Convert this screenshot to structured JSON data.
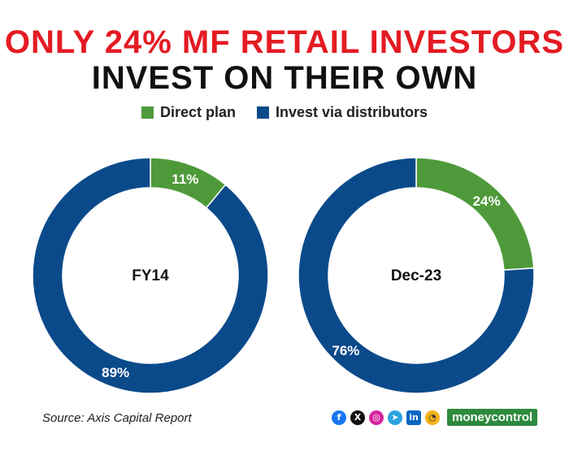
{
  "title": {
    "line1": "ONLY 24% MF RETAIL INVESTORS",
    "line2": "INVEST ON THEIR OWN"
  },
  "legend": {
    "direct": "Direct plan",
    "distributor": "Invest via distributors"
  },
  "colors": {
    "direct": "#4e9a3a",
    "distributor": "#0b4a8a",
    "title_red": "#e41b23"
  },
  "chart_data": [
    {
      "type": "pie",
      "center_label": "FY14",
      "series": [
        {
          "name": "Direct plan",
          "value": 11,
          "label": "11%"
        },
        {
          "name": "Invest via distributors",
          "value": 89,
          "label": "89%"
        }
      ]
    },
    {
      "type": "pie",
      "center_label": "Dec-23",
      "series": [
        {
          "name": "Direct plan",
          "value": 24,
          "label": "24%"
        },
        {
          "name": "Invest via distributors",
          "value": 76,
          "label": "76%"
        }
      ]
    }
  ],
  "source": "Source: Axis Capital Report",
  "brand": "moneycontrol",
  "social_icons": [
    "facebook-icon",
    "x-icon",
    "instagram-icon",
    "telegram-icon",
    "linkedin-icon",
    "koo-icon"
  ]
}
